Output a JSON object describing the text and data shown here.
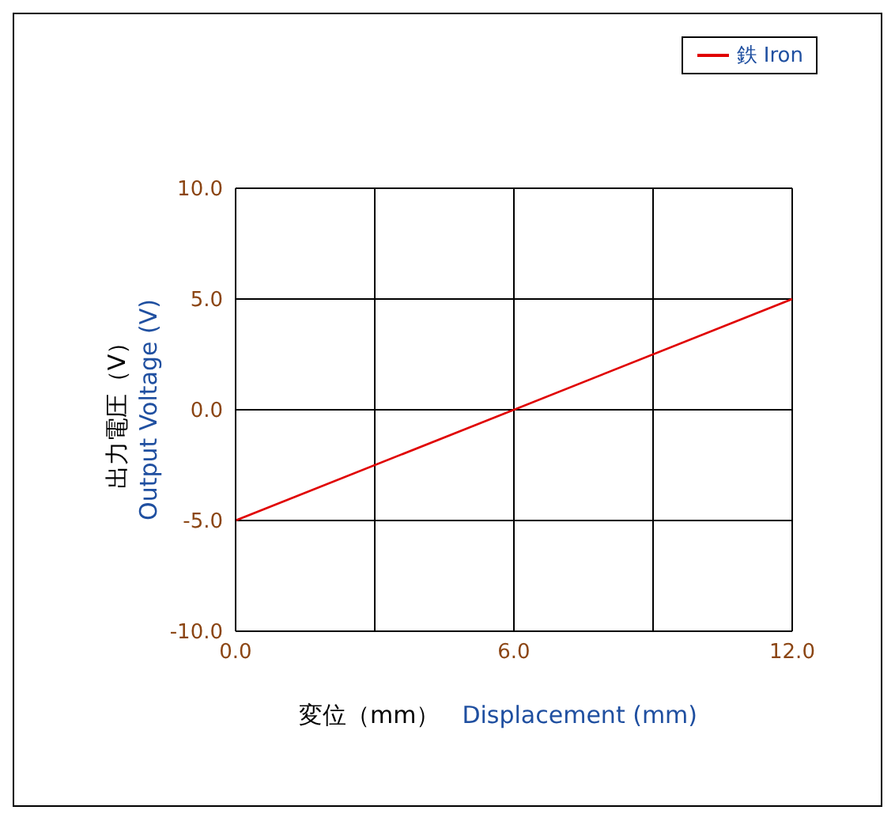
{
  "chart_data": {
    "type": "line",
    "xlabel": "変位（mm）\nDisplacement (mm)",
    "ylabel": "出力電圧（V）\nOutput Voltage (V)",
    "x": [
      0,
      12
    ],
    "series": [
      {
        "name": "鉄 Iron",
        "color": "#e00000",
        "values": [
          -5,
          5
        ]
      }
    ],
    "xlim": [
      0,
      12
    ],
    "xticks": [
      {
        "value": 0,
        "label": "0.0"
      },
      {
        "value": 3,
        "label": null
      },
      {
        "value": 6,
        "label": "6.0"
      },
      {
        "value": 9,
        "label": null
      },
      {
        "value": 12,
        "label": "12.0"
      }
    ],
    "ylim": [
      -10,
      10
    ],
    "yticks": [
      {
        "value": -10,
        "label": "-10.0"
      },
      {
        "value": -5,
        "label": "-5.0"
      },
      {
        "value": 0,
        "label": "0.0"
      },
      {
        "value": 5,
        "label": "5.0"
      },
      {
        "value": 10,
        "label": "10.0"
      }
    ],
    "grid": true,
    "legend": "top right",
    "marker": "none",
    "line_style": "solid"
  }
}
